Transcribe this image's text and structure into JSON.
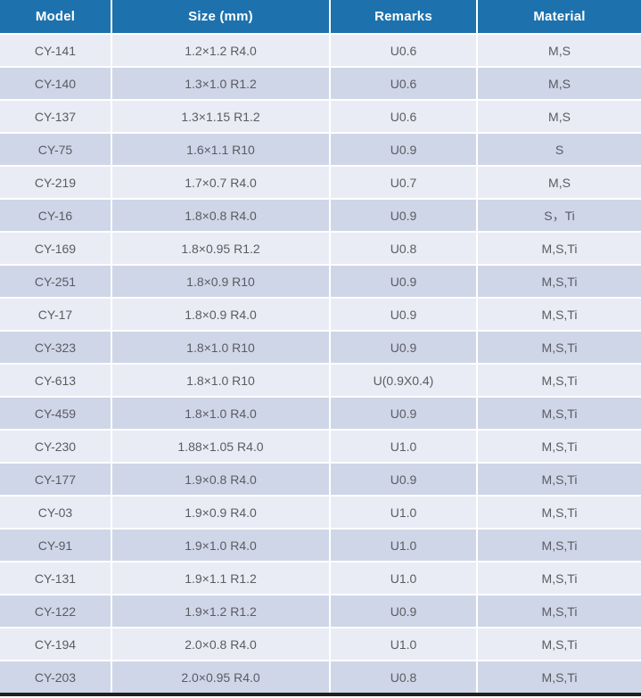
{
  "table": {
    "columns": [
      {
        "key": "model",
        "label": "Model"
      },
      {
        "key": "size",
        "label": "Size (mm)"
      },
      {
        "key": "remarks",
        "label": "Remarks"
      },
      {
        "key": "material",
        "label": "Material"
      }
    ],
    "rows": [
      [
        "CY-141",
        "1.2×1.2 R4.0",
        "U0.6",
        "M,S"
      ],
      [
        "CY-140",
        "1.3×1.0 R1.2",
        "U0.6",
        "M,S"
      ],
      [
        "CY-137",
        "1.3×1.15 R1.2",
        "U0.6",
        "M,S"
      ],
      [
        "CY-75",
        "1.6×1.1 R10",
        "U0.9",
        "S"
      ],
      [
        "CY-219",
        "1.7×0.7 R4.0",
        "U0.7",
        "M,S"
      ],
      [
        "CY-16",
        "1.8×0.8 R4.0",
        "U0.9",
        "S，Ti"
      ],
      [
        "CY-169",
        "1.8×0.95 R1.2",
        "U0.8",
        "M,S,Ti"
      ],
      [
        "CY-251",
        "1.8×0.9 R10",
        "U0.9",
        "M,S,Ti"
      ],
      [
        "CY-17",
        "1.8×0.9 R4.0",
        "U0.9",
        "M,S,Ti"
      ],
      [
        "CY-323",
        "1.8×1.0 R10",
        "U0.9",
        "M,S,Ti"
      ],
      [
        "CY-613",
        "1.8×1.0 R10",
        "U(0.9X0.4)",
        "M,S,Ti"
      ],
      [
        "CY-459",
        "1.8×1.0 R4.0",
        "U0.9",
        "M,S,Ti"
      ],
      [
        "CY-230",
        "1.88×1.05 R4.0",
        "U1.0",
        "M,S,Ti"
      ],
      [
        "CY-177",
        "1.9×0.8 R4.0",
        "U0.9",
        "M,S,Ti"
      ],
      [
        "CY-03",
        "1.9×0.9 R4.0",
        "U1.0",
        "M,S,Ti"
      ],
      [
        "CY-91",
        "1.9×1.0 R4.0",
        "U1.0",
        "M,S,Ti"
      ],
      [
        "CY-131",
        "1.9×1.1 R1.2",
        "U1.0",
        "M,S,Ti"
      ],
      [
        "CY-122",
        "1.9×1.2 R1.2",
        "U0.9",
        "M,S,Ti"
      ],
      [
        "CY-194",
        "2.0×0.8 R4.0",
        "U1.0",
        "M,S,Ti"
      ],
      [
        "CY-203",
        "2.0×0.95 R4.0",
        "U0.8",
        "M,S,Ti"
      ]
    ]
  },
  "colors": {
    "header_bg": "#1d72ae",
    "header_text": "#ffffff",
    "row_odd_bg": "#e9ecf5",
    "row_even_bg": "#cfd6e8",
    "divider": "#ffffff",
    "cell_text": "#5a5c61",
    "bottom_bar": "#1f1f1f"
  },
  "chart_data": {
    "type": "table",
    "columns": [
      "Model",
      "Size (mm)",
      "Remarks",
      "Material"
    ],
    "rows": [
      [
        "CY-141",
        "1.2×1.2 R4.0",
        "U0.6",
        "M,S"
      ],
      [
        "CY-140",
        "1.3×1.0 R1.2",
        "U0.6",
        "M,S"
      ],
      [
        "CY-137",
        "1.3×1.15 R1.2",
        "U0.6",
        "M,S"
      ],
      [
        "CY-75",
        "1.6×1.1 R10",
        "U0.9",
        "S"
      ],
      [
        "CY-219",
        "1.7×0.7 R4.0",
        "U0.7",
        "M,S"
      ],
      [
        "CY-16",
        "1.8×0.8 R4.0",
        "U0.9",
        "S，Ti"
      ],
      [
        "CY-169",
        "1.8×0.95 R1.2",
        "U0.8",
        "M,S,Ti"
      ],
      [
        "CY-251",
        "1.8×0.9 R10",
        "U0.9",
        "M,S,Ti"
      ],
      [
        "CY-17",
        "1.8×0.9 R4.0",
        "U0.9",
        "M,S,Ti"
      ],
      [
        "CY-323",
        "1.8×1.0 R10",
        "U0.9",
        "M,S,Ti"
      ],
      [
        "CY-613",
        "1.8×1.0 R10",
        "U(0.9X0.4)",
        "M,S,Ti"
      ],
      [
        "CY-459",
        "1.8×1.0 R4.0",
        "U0.9",
        "M,S,Ti"
      ],
      [
        "CY-230",
        "1.88×1.05 R4.0",
        "U1.0",
        "M,S,Ti"
      ],
      [
        "CY-177",
        "1.9×0.8 R4.0",
        "U0.9",
        "M,S,Ti"
      ],
      [
        "CY-03",
        "1.9×0.9 R4.0",
        "U1.0",
        "M,S,Ti"
      ],
      [
        "CY-91",
        "1.9×1.0 R4.0",
        "U1.0",
        "M,S,Ti"
      ],
      [
        "CY-131",
        "1.9×1.1 R1.2",
        "U1.0",
        "M,S,Ti"
      ],
      [
        "CY-122",
        "1.9×1.2 R1.2",
        "U0.9",
        "M,S,Ti"
      ],
      [
        "CY-194",
        "2.0×0.8 R4.0",
        "U1.0",
        "M,S,Ti"
      ],
      [
        "CY-203",
        "2.0×0.95 R4.0",
        "U0.8",
        "M,S,Ti"
      ]
    ],
    "layout": {
      "grid": false,
      "header_style": "solid-blue",
      "zebra_rows": true
    }
  }
}
